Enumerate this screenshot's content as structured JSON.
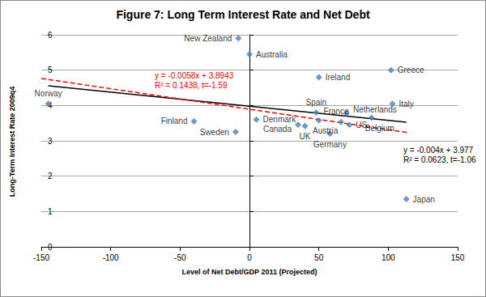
{
  "chart_data": {
    "type": "scatter",
    "title": "Figure 7: Long Term Interest Rate and Net Debt",
    "x_label": "Level of Net Debt/GDP 2011 (Projected)",
    "y_label": "Long-Term Interest Rate 2009q4",
    "xlim": [
      -150,
      150
    ],
    "xticks": [
      -150,
      -100,
      -50,
      0,
      50,
      100,
      150
    ],
    "ylim": [
      0,
      6
    ],
    "yticks": [
      0,
      1,
      2,
      3,
      4,
      5,
      6
    ],
    "grid": true,
    "series": [
      {
        "type": "scatter",
        "color": "#4a7ebb",
        "marker": "diamond",
        "labels": [
          "Norway",
          "Finland",
          "Sweden",
          "New Zealand",
          "Australia",
          "Denmark",
          "Canada",
          "UK",
          "Austria",
          "Spain",
          "Ireland",
          "Germany",
          "France",
          "US",
          "Netherlands",
          "Belgium",
          "Greece",
          "Italy",
          "Japan"
        ],
        "x": [
          -145,
          -40,
          -10,
          -8,
          0,
          5,
          35,
          40,
          50,
          48,
          50,
          58,
          66,
          72,
          70,
          88,
          102,
          103,
          113
        ],
        "values": [
          4.05,
          3.55,
          3.25,
          5.9,
          5.45,
          3.6,
          3.45,
          3.42,
          3.58,
          3.8,
          4.8,
          3.2,
          3.53,
          3.45,
          3.78,
          3.65,
          5.0,
          4.05,
          1.35
        ]
      },
      {
        "type": "line",
        "color": "#000000",
        "line_style": "solid",
        "x": [
          -145,
          113
        ],
        "values": [
          4.557,
          3.525
        ]
      },
      {
        "type": "line",
        "color": "#ff0000",
        "line_style": "dashed",
        "x": [
          -150,
          115
        ],
        "values": [
          4.764,
          3.227
        ]
      }
    ],
    "annotations": [
      {
        "text": [
          "y = -0.0058x + 3.8943",
          "R² = 0.1438, t=-1.59"
        ],
        "color": "#ff0000"
      },
      {
        "text": [
          "y = -0.004x + 3.977",
          "R² = 0.0623, t=-1.06"
        ],
        "color": "#000000"
      }
    ]
  }
}
